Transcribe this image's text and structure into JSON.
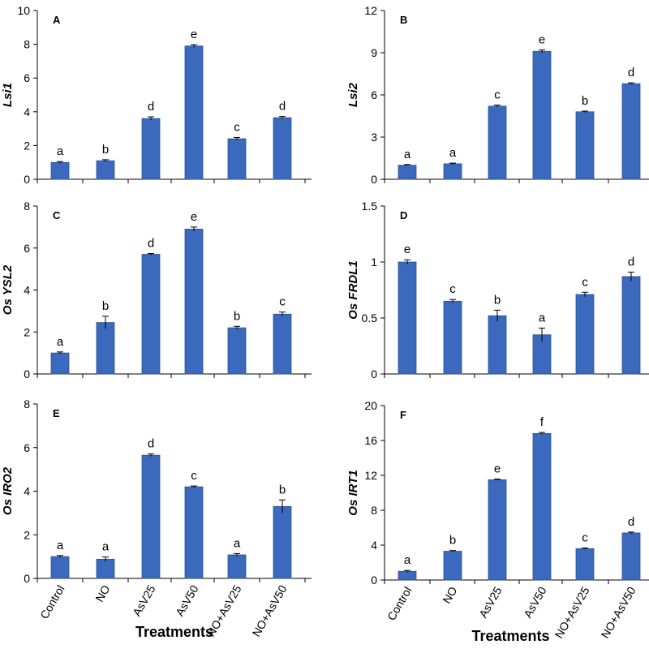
{
  "colors": {
    "bar": "#3a69bd",
    "bar_edge": "#2c5193",
    "axis": "#000000"
  },
  "chart_data": [
    {
      "type": "bar",
      "panel": "A",
      "ylabel": "Lsi1",
      "xlabel": "",
      "ylim": [
        0,
        10
      ],
      "yticks": [
        0,
        2,
        4,
        6,
        8,
        10
      ],
      "categories": [
        "Control",
        "NO",
        "AsV25",
        "AsV50",
        "NO+AsV25",
        "NO+AsV50"
      ],
      "values": [
        1.0,
        1.1,
        3.6,
        7.9,
        2.4,
        3.65
      ],
      "errors": [
        0.05,
        0.06,
        0.1,
        0.08,
        0.08,
        0.07
      ],
      "labels": [
        "a",
        "b",
        "d",
        "e",
        "c",
        "d"
      ]
    },
    {
      "type": "bar",
      "panel": "B",
      "ylabel": "Lsi2",
      "xlabel": "",
      "ylim": [
        0,
        12
      ],
      "yticks": [
        0,
        3,
        6,
        9,
        12
      ],
      "categories": [
        "Control",
        "NO",
        "AsV25",
        "AsV50",
        "NO+AsV25",
        "NO+AsV50"
      ],
      "values": [
        1.0,
        1.1,
        5.2,
        9.1,
        4.8,
        6.8
      ],
      "errors": [
        0.05,
        0.05,
        0.08,
        0.1,
        0.05,
        0.06
      ],
      "labels": [
        "a",
        "a",
        "c",
        "e",
        "b",
        "d"
      ]
    },
    {
      "type": "bar",
      "panel": "C",
      "ylabel": "Os YSL2",
      "xlabel": "",
      "ylim": [
        0,
        8
      ],
      "yticks": [
        0,
        2,
        4,
        6,
        8
      ],
      "categories": [
        "Control",
        "NO",
        "AsV25",
        "AsV50",
        "NO+AsV25",
        "NO+AsV50"
      ],
      "values": [
        1.0,
        2.45,
        5.7,
        6.9,
        2.2,
        2.85
      ],
      "errors": [
        0.05,
        0.3,
        0.04,
        0.1,
        0.07,
        0.1
      ],
      "labels": [
        "a",
        "b",
        "d",
        "e",
        "b",
        "c"
      ]
    },
    {
      "type": "bar",
      "panel": "D",
      "ylabel": "Os FRDL1",
      "xlabel": "",
      "ylim": [
        0,
        1.5
      ],
      "yticks": [
        0,
        0.5,
        1,
        1.5
      ],
      "categories": [
        "Control",
        "NO",
        "AsV25",
        "AsV50",
        "NO+AsV25",
        "NO+AsV50"
      ],
      "values": [
        1.0,
        0.65,
        0.52,
        0.35,
        0.71,
        0.87
      ],
      "errors": [
        0.02,
        0.015,
        0.05,
        0.06,
        0.02,
        0.04
      ],
      "labels": [
        "e",
        "c",
        "b",
        "a",
        "c",
        "d"
      ]
    },
    {
      "type": "bar",
      "panel": "E",
      "ylabel": "Os IRO2",
      "xlabel": "Treatments",
      "ylim": [
        0,
        8
      ],
      "yticks": [
        0,
        2,
        4,
        6,
        8
      ],
      "categories": [
        "Control",
        "NO",
        "AsV25",
        "AsV50",
        "NO+AsV25",
        "NO+AsV50"
      ],
      "values": [
        1.0,
        0.88,
        5.65,
        4.2,
        1.08,
        3.3
      ],
      "errors": [
        0.05,
        0.1,
        0.06,
        0.04,
        0.06,
        0.3
      ],
      "labels": [
        "a",
        "a",
        "d",
        "c",
        "a",
        "b"
      ]
    },
    {
      "type": "bar",
      "panel": "F",
      "ylabel": "Os IRT1",
      "xlabel": "Treatments",
      "ylim": [
        0,
        20
      ],
      "yticks": [
        0,
        4,
        8,
        12,
        16,
        20
      ],
      "categories": [
        "Control",
        "NO",
        "AsV25",
        "AsV50",
        "NO+AsV25",
        "NO+AsV50"
      ],
      "values": [
        1.0,
        3.3,
        11.5,
        16.8,
        3.6,
        5.4
      ],
      "errors": [
        0.1,
        0.08,
        0.08,
        0.12,
        0.08,
        0.1
      ],
      "labels": [
        "a",
        "b",
        "e",
        "f",
        "c",
        "d"
      ]
    }
  ]
}
